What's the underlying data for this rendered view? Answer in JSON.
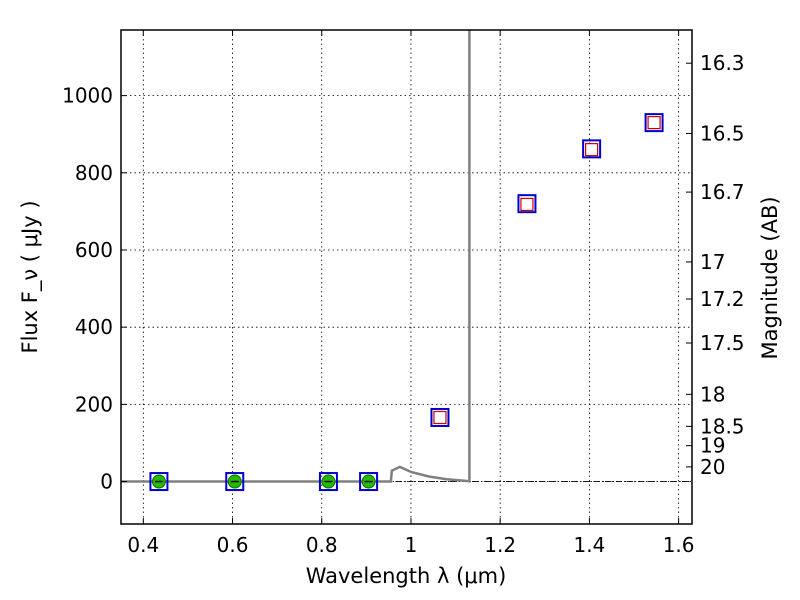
{
  "chart_data": {
    "type": "scatter",
    "title": "",
    "xlabel": "Wavelength  λ (μm)",
    "ylabel": "Flux  F_ν  ( μJy )",
    "ylabel_right": "Magnitude (AB)",
    "xlim": [
      0.35,
      1.63
    ],
    "ylim": [
      -110,
      1170
    ],
    "grid": true,
    "x_ticks": [
      0.4,
      0.6,
      0.8,
      1.0,
      1.2,
      1.4,
      1.6
    ],
    "x_tick_labels": [
      "0.4",
      "0.6",
      "0.8",
      "1",
      "1.2",
      "1.4",
      "1.6"
    ],
    "y_ticks": [
      0,
      200,
      400,
      600,
      800,
      1000
    ],
    "y_tick_labels": [
      "0",
      "200",
      "400",
      "600",
      "800",
      "1000"
    ],
    "right_axis_ticks": [
      {
        "label": "16.3",
        "flux": 1084
      },
      {
        "label": "16.5",
        "flux": 902
      },
      {
        "label": "16.7",
        "flux": 750
      },
      {
        "label": "17",
        "flux": 569
      },
      {
        "label": "17.2",
        "flux": 473
      },
      {
        "label": "17.5",
        "flux": 359
      },
      {
        "label": "18",
        "flux": 226
      },
      {
        "label": "18.5",
        "flux": 143
      },
      {
        "label": "19",
        "flux": 93
      },
      {
        "label": "20",
        "flux": 38
      }
    ],
    "series": [
      {
        "marker": "open-square",
        "color": "#0000cc",
        "x": [
          0.435,
          0.605,
          0.815,
          0.905,
          1.065,
          1.26,
          1.405,
          1.545
        ],
        "y": [
          0,
          0,
          0,
          0,
          166,
          720,
          862,
          930
        ]
      },
      {
        "marker": "filled-circle",
        "color": "#22bb00",
        "x": [
          0.435,
          0.605,
          0.815,
          0.905
        ],
        "y": [
          0,
          0,
          0,
          0
        ]
      },
      {
        "marker": "small-open-square",
        "color": "#cc0000",
        "x": [
          1.065,
          1.26,
          1.405,
          1.545
        ],
        "y": [
          166,
          718,
          860,
          930
        ]
      },
      {
        "marker": "line",
        "color": "#808080",
        "x": [
          0.35,
          0.955,
          0.957,
          0.975,
          1.0,
          1.04,
          1.08,
          1.12,
          1.13,
          1.131,
          1.131
        ],
        "y": [
          0,
          0,
          28,
          38,
          25,
          13,
          6,
          2,
          1,
          1,
          1200
        ]
      }
    ]
  }
}
